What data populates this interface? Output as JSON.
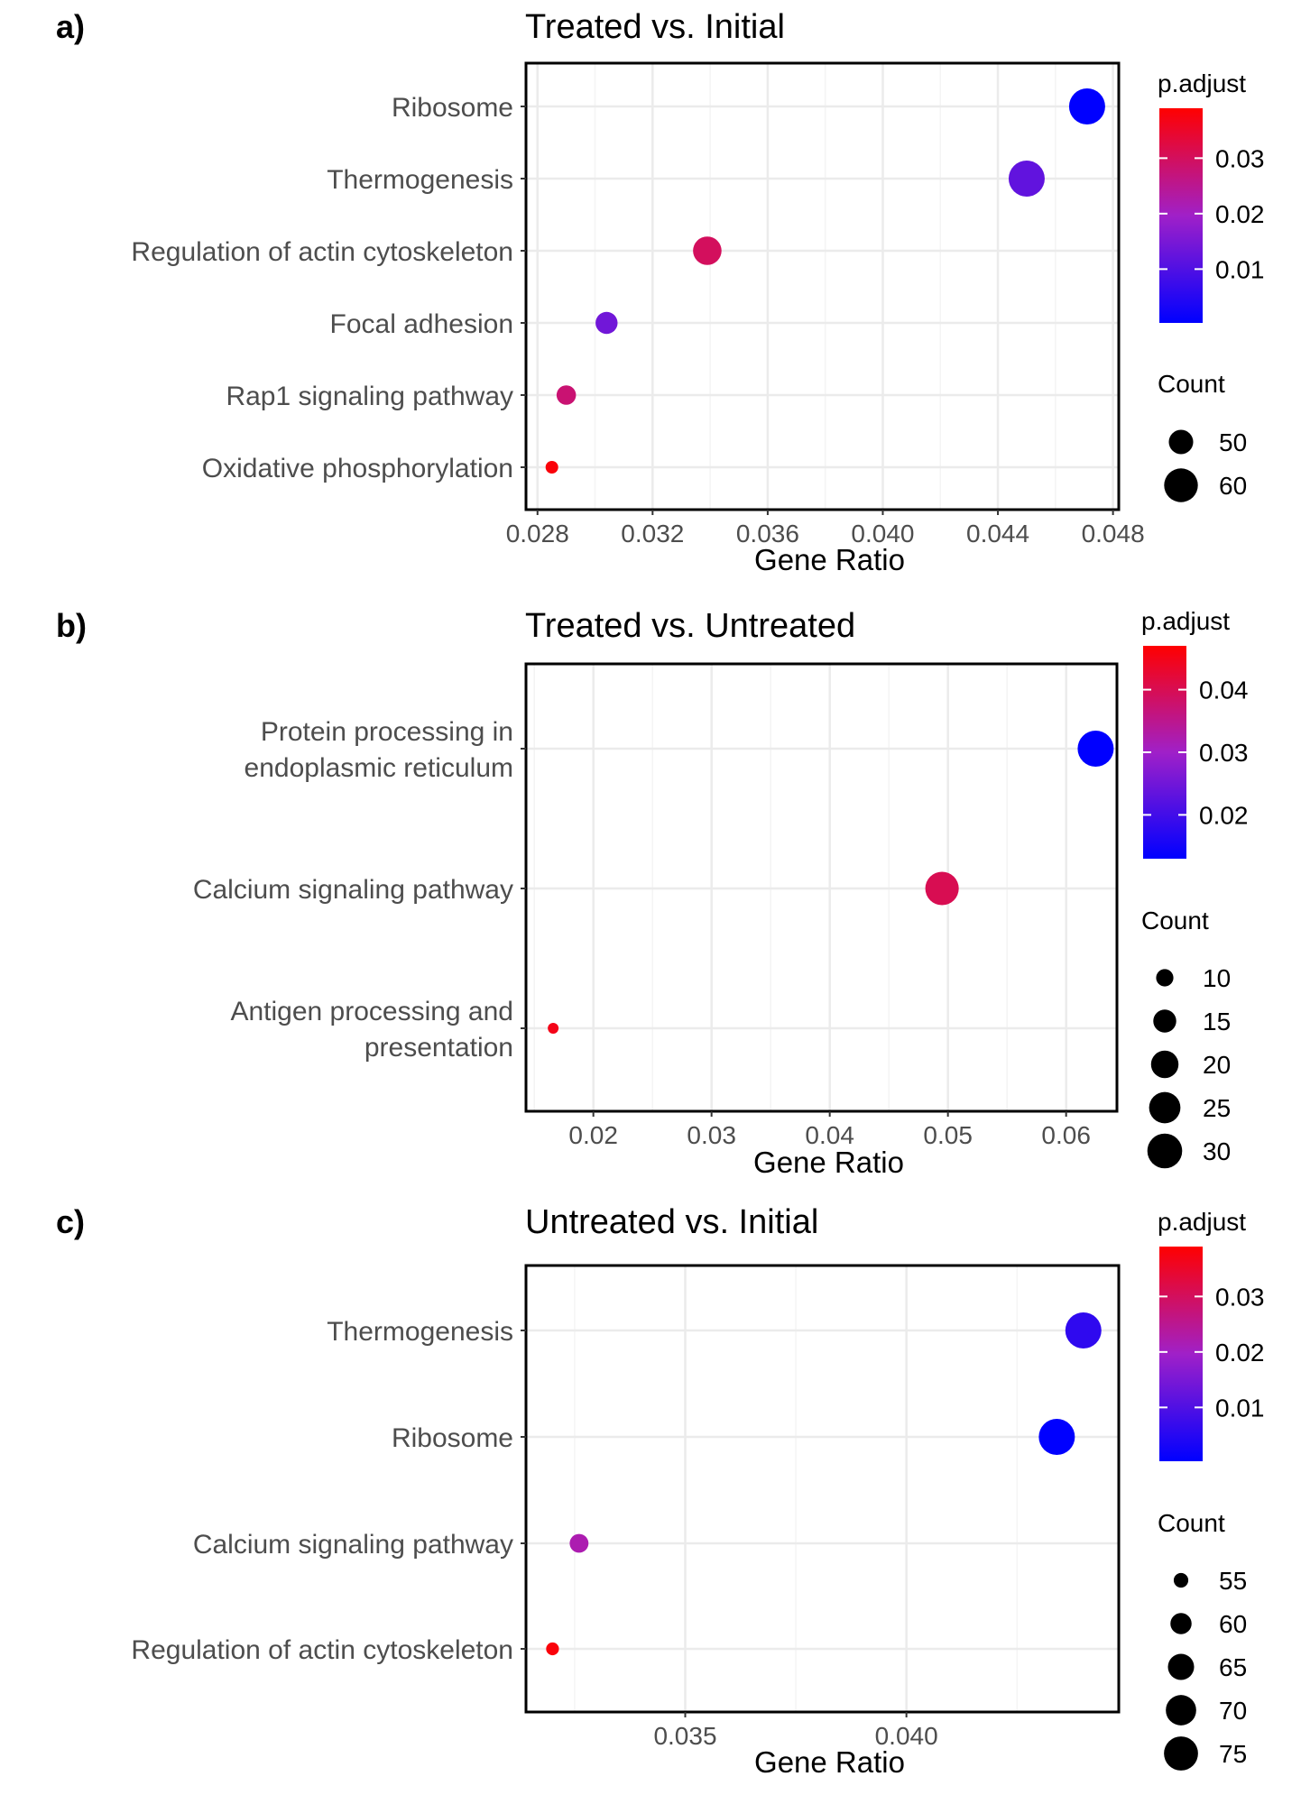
{
  "figure": {
    "xlabel": "Gene Ratio",
    "color_legend_title": "p.adjust",
    "size_legend_title": "Count",
    "colors": {
      "low": "#0000FF",
      "mid": "#A020C8",
      "high": "#FF0000",
      "grid": "#EBEBEB",
      "text": "#4D4D4D"
    }
  },
  "chart_data": [
    {
      "type": "scatter",
      "panel_label": "a)",
      "title": "Treated vs. Initial",
      "xlabel": "Gene Ratio",
      "ylabel": "",
      "xlim": [
        0.0276,
        0.0482
      ],
      "xticks": [
        0.028,
        0.032,
        0.036,
        0.04,
        0.044,
        0.048
      ],
      "xtick_labels": [
        "0.028",
        "0.032",
        "0.036",
        "0.040",
        "0.044",
        "0.048"
      ],
      "categories": [
        {
          "label": [
            "Ribosome"
          ],
          "x": 0.0471,
          "count": 63,
          "p_adjust": 0.0003
        },
        {
          "label": [
            "Thermogenesis"
          ],
          "x": 0.045,
          "count": 63,
          "p_adjust": 0.012
        },
        {
          "label": [
            "Regulation of actin cytoskeleton"
          ],
          "x": 0.0339,
          "count": 54,
          "p_adjust": 0.03
        },
        {
          "label": [
            "Focal adhesion"
          ],
          "x": 0.0304,
          "count": 48,
          "p_adjust": 0.014
        },
        {
          "label": [
            "Rap1 signaling pathway"
          ],
          "x": 0.029,
          "count": 46,
          "p_adjust": 0.028
        },
        {
          "label": [
            "Oxidative phosphorylation"
          ],
          "x": 0.0285,
          "count": 42,
          "p_adjust": 0.038
        }
      ],
      "color_scale": {
        "min": 0.0003,
        "max": 0.039,
        "ticks": [
          0.01,
          0.02,
          0.03
        ],
        "tick_labels": [
          "0.01",
          "0.02",
          "0.03"
        ]
      },
      "size_scale": {
        "min": 42,
        "max": 63,
        "legend": [
          50,
          60
        ],
        "legend_labels": [
          "50",
          "60"
        ]
      },
      "grid": true
    },
    {
      "type": "scatter",
      "panel_label": "b)",
      "title": "Treated vs. Untreated",
      "xlabel": "Gene Ratio",
      "ylabel": "",
      "xlim": [
        0.0143,
        0.0643
      ],
      "xticks": [
        0.02,
        0.03,
        0.04,
        0.05,
        0.06
      ],
      "xtick_labels": [
        "0.02",
        "0.03",
        "0.04",
        "0.05",
        "0.06"
      ],
      "categories": [
        {
          "label": [
            "Protein processing in",
            "endoplasmic reticulum"
          ],
          "x": 0.0625,
          "count": 32,
          "p_adjust": 0.013
        },
        {
          "label": [
            "Calcium signaling pathway"
          ],
          "x": 0.0495,
          "count": 28,
          "p_adjust": 0.04
        },
        {
          "label": [
            "Antigen processing and",
            "presentation"
          ],
          "x": 0.0166,
          "count": 6,
          "p_adjust": 0.045
        }
      ],
      "color_scale": {
        "min": 0.013,
        "max": 0.047,
        "ticks": [
          0.02,
          0.03,
          0.04
        ],
        "tick_labels": [
          "0.02",
          "0.03",
          "0.04"
        ]
      },
      "size_scale": {
        "min": 6,
        "max": 32,
        "legend": [
          10,
          15,
          20,
          25,
          30
        ],
        "legend_labels": [
          "10",
          "15",
          "20",
          "25",
          "30"
        ]
      },
      "grid": true
    },
    {
      "type": "scatter",
      "panel_label": "c)",
      "title": "Untreated vs. Initial",
      "xlabel": "Gene Ratio",
      "ylabel": "",
      "xlim": [
        0.0314,
        0.0448
      ],
      "xticks": [
        0.035,
        0.04
      ],
      "xtick_labels": [
        "0.035",
        "0.040"
      ],
      "categories": [
        {
          "label": [
            "Thermogenesis"
          ],
          "x": 0.044,
          "count": 78,
          "p_adjust": 0.006
        },
        {
          "label": [
            "Ribosome"
          ],
          "x": 0.0434,
          "count": 78,
          "p_adjust": 0.0003
        },
        {
          "label": [
            "Calcium signaling pathway"
          ],
          "x": 0.0326,
          "count": 58,
          "p_adjust": 0.022
        },
        {
          "label": [
            "Regulation of actin cytoskeleton"
          ],
          "x": 0.032,
          "count": 54,
          "p_adjust": 0.038
        }
      ],
      "color_scale": {
        "min": 0.0003,
        "max": 0.039,
        "ticks": [
          0.01,
          0.02,
          0.03
        ],
        "tick_labels": [
          "0.01",
          "0.02",
          "0.03"
        ]
      },
      "size_scale": {
        "min": 53,
        "max": 78,
        "legend": [
          55,
          60,
          65,
          70,
          75
        ],
        "legend_labels": [
          "55",
          "60",
          "65",
          "70",
          "75"
        ]
      },
      "grid": true
    }
  ]
}
